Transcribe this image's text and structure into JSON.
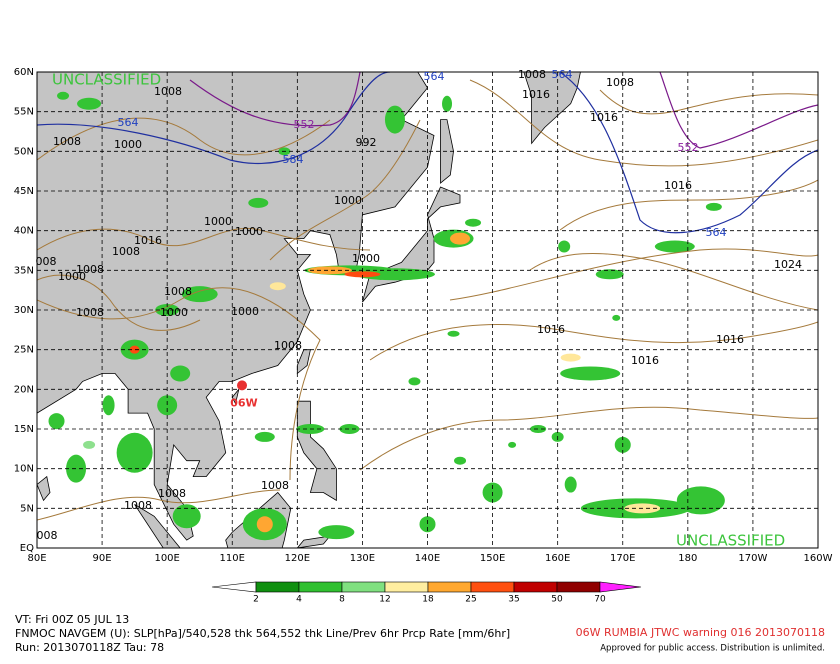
{
  "map": {
    "watermarks": [
      "UNCLASSIFIED",
      "UNCLASSIFIED"
    ],
    "latitude_labels": [
      "60N",
      "55N",
      "50N",
      "45N",
      "40N",
      "35N",
      "30N",
      "25N",
      "20N",
      "15N",
      "10N",
      "5N",
      "EQ"
    ],
    "longitude_labels": [
      "80E",
      "90E",
      "100E",
      "110E",
      "120E",
      "130E",
      "140E",
      "150E",
      "160E",
      "170E",
      "180",
      "170W",
      "160W"
    ],
    "contour_labels": [
      "1008",
      "564",
      "1008",
      "1000",
      "552",
      "584",
      "992",
      "564",
      "1008",
      "564",
      "1016",
      "1008",
      "1016",
      "552",
      "1016",
      "1000",
      "1000",
      "1000",
      "1016",
      "1008",
      "008",
      "1008",
      "1000",
      "1008",
      "1000",
      "1008",
      "1000",
      "1000",
      "1008",
      "1016",
      "1016",
      "1016",
      "1024",
      "564",
      "1008",
      "1008",
      "1008",
      "008"
    ],
    "storm_label": "06W"
  },
  "colorbar": {
    "labels": [
      2,
      4,
      8,
      12,
      18,
      25,
      35,
      50,
      70
    ]
  },
  "footer": {
    "valid_time": "VT: Fri 00Z 05 JUL 13",
    "model": "FNMOC NAVGEM (U): SLP[hPa]/540,528 thk 564,552 thk Line/Prev 6hr Prcp Rate [mm/6hr]",
    "run": "Run: 2013070118Z Tau: 78",
    "warning": "06W RUMBIA JTWC warning 016 2013070118",
    "approval": "Approved for public access. Distribution is unlimited."
  }
}
